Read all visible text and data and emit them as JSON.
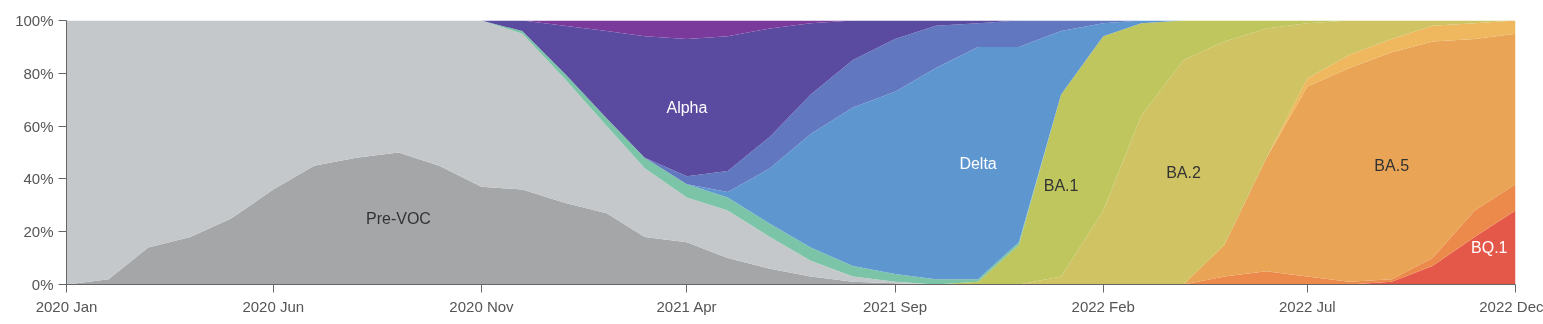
{
  "chart_data": {
    "type": "area",
    "stacked": true,
    "grid": false,
    "legend": false,
    "x": [
      "2020-01",
      "2020-02",
      "2020-03",
      "2020-04",
      "2020-05",
      "2020-06",
      "2020-07",
      "2020-08",
      "2020-09",
      "2020-10",
      "2020-11",
      "2020-12",
      "2021-01",
      "2021-02",
      "2021-03",
      "2021-04",
      "2021-05",
      "2021-06",
      "2021-07",
      "2021-08",
      "2021-09",
      "2021-10",
      "2021-11",
      "2021-12",
      "2022-01",
      "2022-02",
      "2022-03",
      "2022-04",
      "2022-05",
      "2022-06",
      "2022-07",
      "2022-08",
      "2022-09",
      "2022-10",
      "2022-11",
      "2022-12"
    ],
    "xlim": [
      "2020-01",
      "2022-12"
    ],
    "xticks": [
      {
        "value": "2020-01",
        "label": "2020 Jan"
      },
      {
        "value": "2020-06",
        "label": "2020 Jun"
      },
      {
        "value": "2020-11",
        "label": "2020 Nov"
      },
      {
        "value": "2021-04",
        "label": "2021 Apr"
      },
      {
        "value": "2021-09",
        "label": "2021 Sep"
      },
      {
        "value": "2022-02",
        "label": "2022 Feb"
      },
      {
        "value": "2022-07",
        "label": "2022 Jul"
      },
      {
        "value": "2022-12",
        "label": "2022 Dec"
      }
    ],
    "ylim": [
      0,
      100
    ],
    "yticks": [
      {
        "value": 0,
        "label": "0%"
      },
      {
        "value": 20,
        "label": "20%"
      },
      {
        "value": 40,
        "label": "40%"
      },
      {
        "value": 60,
        "label": "60%"
      },
      {
        "value": 80,
        "label": "80%"
      },
      {
        "value": 100,
        "label": "100%"
      }
    ],
    "series": [
      {
        "name": "BQ.1",
        "color": "#e4584a",
        "values": [
          null,
          null,
          null,
          null,
          null,
          null,
          null,
          null,
          null,
          null,
          null,
          null,
          null,
          null,
          null,
          null,
          null,
          null,
          null,
          null,
          null,
          null,
          null,
          null,
          null,
          null,
          null,
          null,
          null,
          null,
          null,
          0,
          1,
          7,
          18,
          28
        ]
      },
      {
        "color": "#ec8a4c",
        "values": [
          null,
          null,
          null,
          null,
          null,
          null,
          null,
          null,
          null,
          null,
          null,
          null,
          null,
          null,
          null,
          null,
          null,
          null,
          null,
          null,
          null,
          null,
          null,
          null,
          null,
          null,
          null,
          0,
          3,
          5,
          3,
          1,
          1,
          3,
          10,
          10
        ]
      },
      {
        "name": "BA.5",
        "color": "#e9a456",
        "values": [
          null,
          null,
          null,
          null,
          null,
          null,
          null,
          null,
          null,
          null,
          null,
          null,
          null,
          null,
          null,
          null,
          null,
          null,
          null,
          null,
          null,
          null,
          null,
          null,
          null,
          null,
          null,
          0,
          12,
          43,
          72,
          81,
          86,
          82,
          65,
          57
        ]
      },
      {
        "color": "#efb85e",
        "values": [
          null,
          null,
          null,
          null,
          null,
          null,
          null,
          null,
          null,
          null,
          null,
          null,
          null,
          null,
          null,
          null,
          null,
          null,
          null,
          null,
          null,
          null,
          null,
          null,
          null,
          null,
          null,
          null,
          null,
          0,
          3,
          5,
          5,
          6,
          6,
          5
        ]
      },
      {
        "name": "BA.2",
        "color": "#d0c363",
        "values": [
          null,
          null,
          null,
          null,
          null,
          null,
          null,
          null,
          null,
          null,
          null,
          null,
          null,
          null,
          null,
          null,
          null,
          null,
          null,
          null,
          null,
          null,
          null,
          0,
          3,
          28,
          64,
          85,
          77,
          49,
          21,
          13,
          7,
          2,
          1,
          0
        ]
      },
      {
        "name": "BA.1",
        "color": "#bfc65e",
        "values": [
          null,
          null,
          null,
          null,
          null,
          null,
          null,
          null,
          null,
          null,
          null,
          null,
          null,
          null,
          null,
          null,
          null,
          null,
          null,
          null,
          null,
          0,
          1,
          15,
          69,
          66,
          35,
          15,
          8,
          3,
          1,
          0,
          null,
          null,
          null,
          null
        ]
      },
      {
        "name": "Pre-VOC",
        "color": "#a4a6a8",
        "values": [
          0,
          2,
          14,
          18,
          25,
          36,
          45,
          48,
          50,
          45,
          37,
          36,
          31,
          27,
          18,
          16,
          10,
          6,
          3,
          1,
          0.5,
          0,
          null,
          null,
          null,
          null,
          null,
          null,
          null,
          null,
          null,
          null,
          null,
          null,
          null,
          null
        ]
      },
      {
        "color": "#c4c8ca",
        "values": [
          100,
          98,
          86,
          82,
          75,
          64,
          55,
          52,
          50,
          55,
          63,
          59,
          47,
          33,
          26,
          17,
          18,
          12,
          6,
          2,
          0.5,
          0,
          null,
          null,
          null,
          null,
          null,
          null,
          null,
          null,
          null,
          null,
          null,
          null,
          null,
          null
        ]
      },
      {
        "color": "#7cc4a8",
        "values": [
          null,
          null,
          null,
          null,
          null,
          null,
          null,
          null,
          null,
          null,
          0,
          1,
          2,
          3,
          4,
          5,
          5,
          5,
          5,
          4,
          3,
          2,
          1,
          1,
          0,
          null,
          null,
          null,
          null,
          null,
          null,
          null,
          null,
          null,
          null,
          null
        ]
      },
      {
        "name": "Delta",
        "color": "#5e96d0",
        "values": [
          null,
          null,
          null,
          null,
          null,
          null,
          null,
          null,
          null,
          null,
          null,
          null,
          null,
          null,
          null,
          0,
          2,
          21,
          43,
          60,
          69,
          80,
          88,
          74,
          24,
          5,
          1,
          0,
          null,
          null,
          null,
          null,
          null,
          null,
          null,
          null
        ]
      },
      {
        "color": "#6178c0",
        "values": [
          null,
          null,
          null,
          null,
          null,
          null,
          null,
          null,
          null,
          null,
          null,
          null,
          null,
          null,
          0,
          3,
          8,
          12,
          15,
          18,
          20,
          16,
          9,
          10,
          4,
          1,
          0,
          null,
          null,
          null,
          null,
          null,
          null,
          null,
          null,
          null
        ]
      },
      {
        "name": "Alpha",
        "color": "#5a4aa0",
        "values": [
          null,
          null,
          null,
          null,
          null,
          null,
          null,
          null,
          null,
          null,
          0,
          4,
          18,
          33,
          46,
          52,
          51,
          41,
          27,
          15,
          7,
          2,
          1,
          0,
          null,
          null,
          null,
          null,
          null,
          null,
          null,
          null,
          null,
          null,
          null,
          null
        ]
      },
      {
        "color": "#7a3a9c",
        "values": [
          null,
          null,
          null,
          null,
          null,
          null,
          null,
          null,
          null,
          null,
          null,
          0,
          2,
          4,
          6,
          7,
          6,
          3,
          1,
          0,
          null,
          null,
          null,
          null,
          null,
          null,
          null,
          null,
          null,
          null,
          null,
          null,
          null,
          null,
          null,
          null
        ]
      }
    ]
  }
}
